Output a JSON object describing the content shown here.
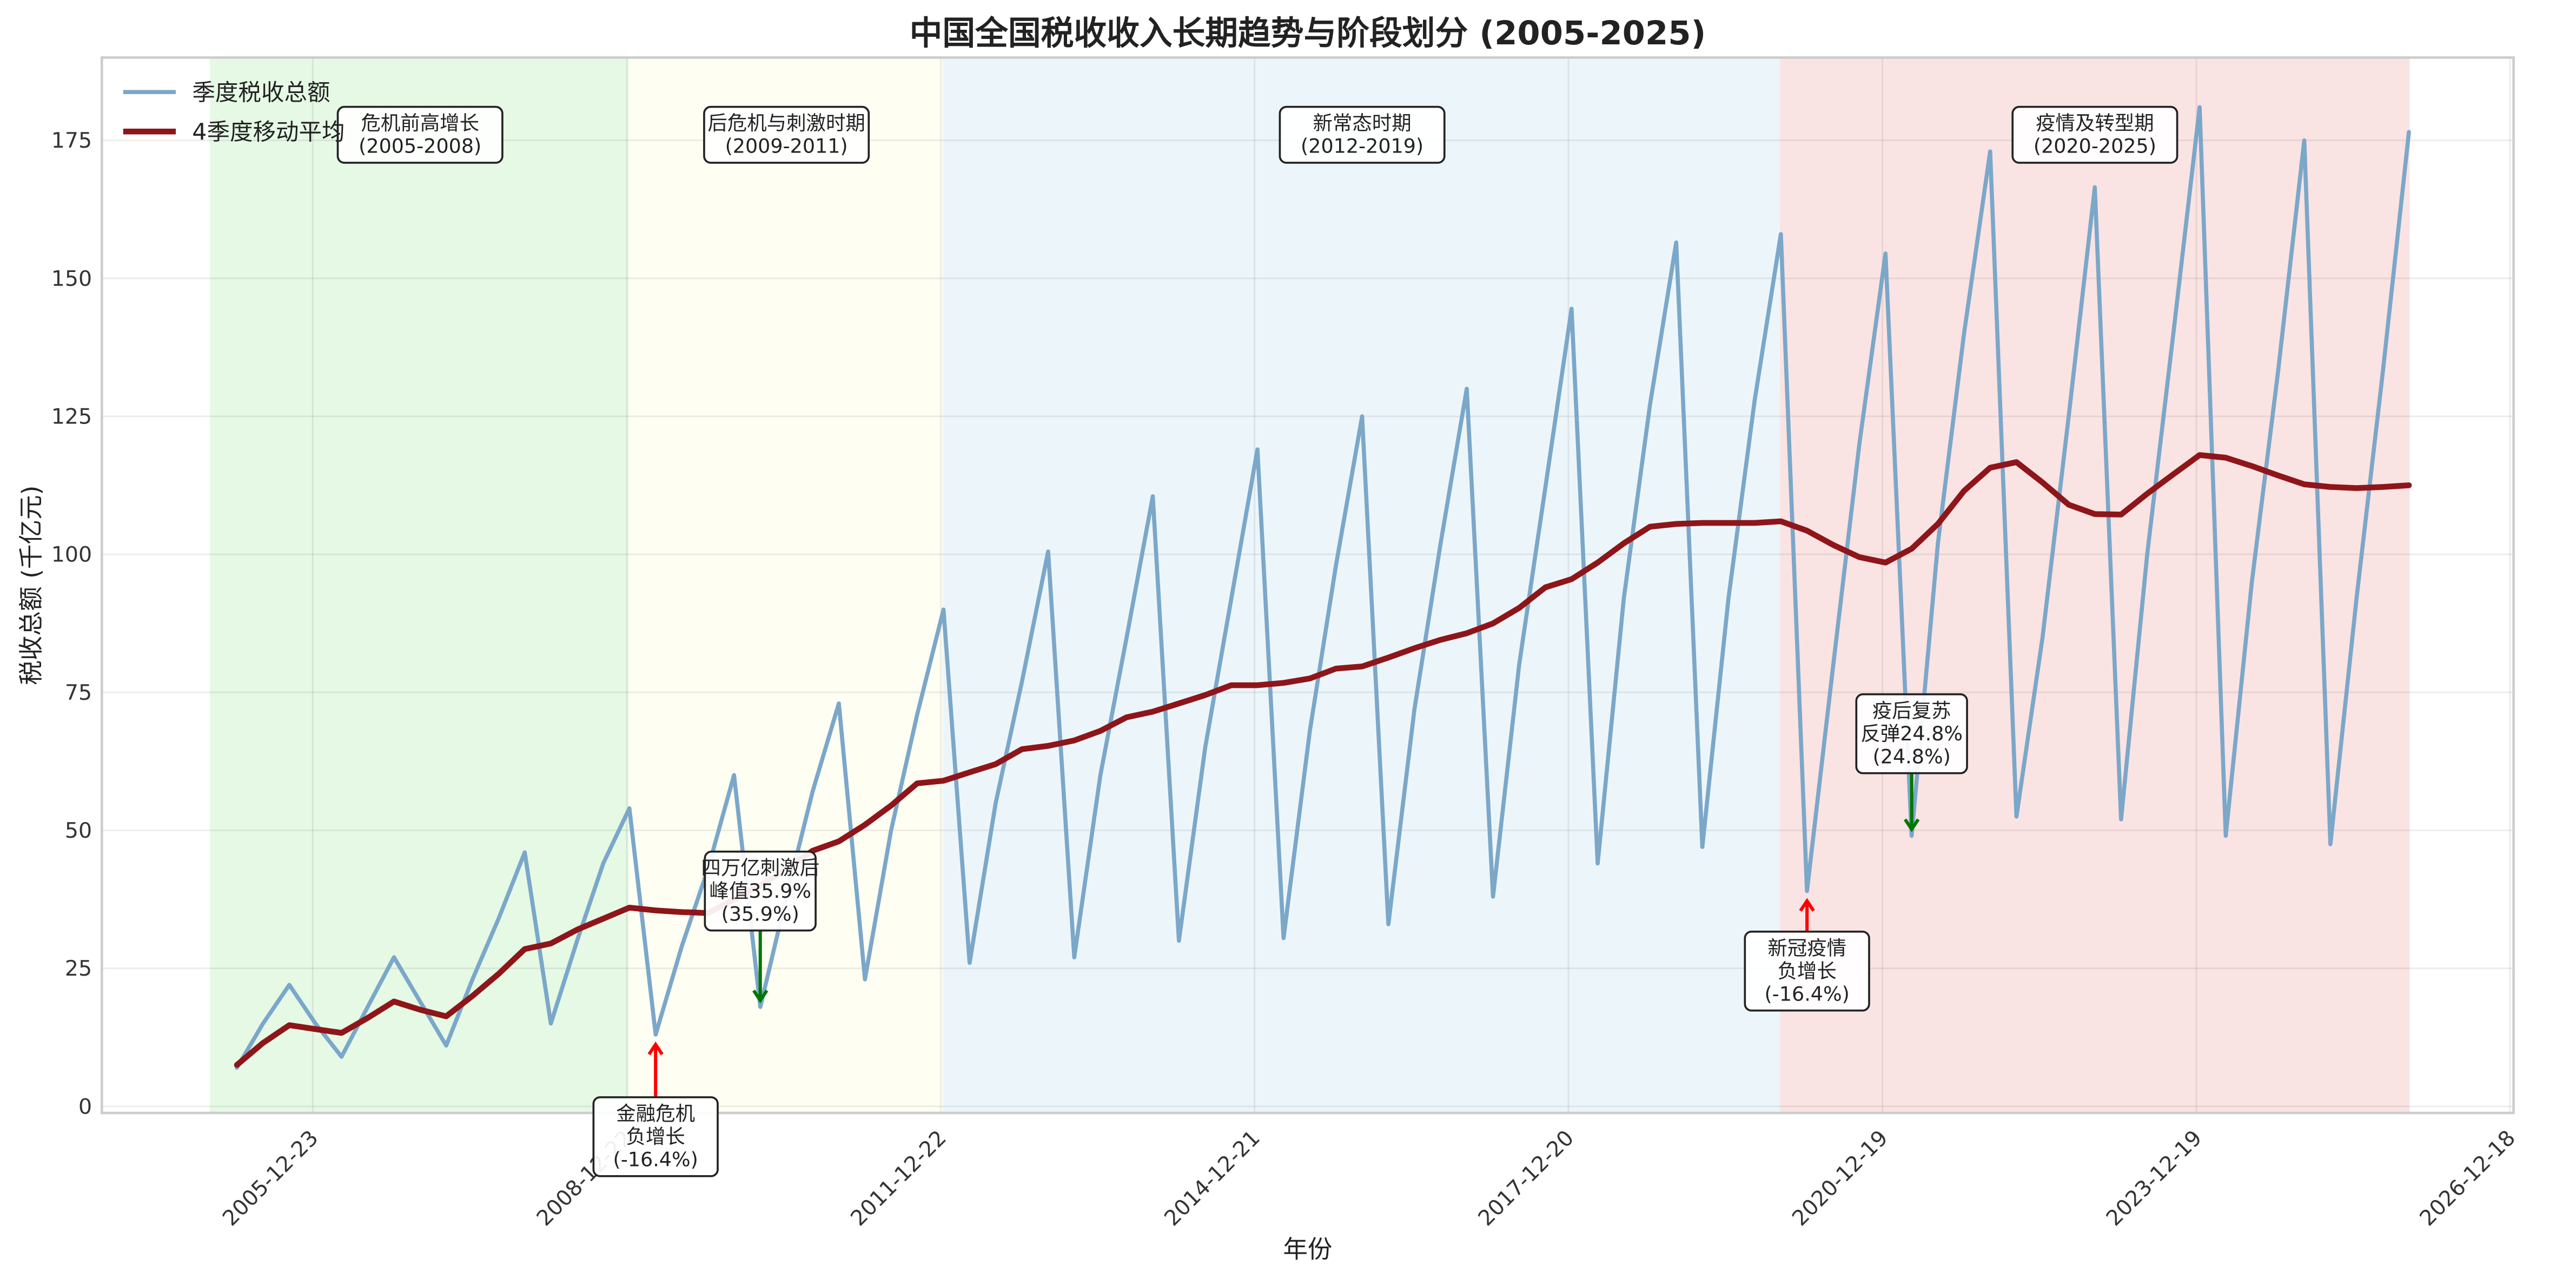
{
  "chart_data": {
    "type": "line",
    "title": "中国全国税收收入长期趋势与阶段划分 (2005-2025)",
    "xlabel": "年份",
    "ylabel": "税收总额 (千亿元)",
    "xlim": [
      2003.96,
      2027.0
    ],
    "ylim": [
      -1.2,
      190
    ],
    "grid": true,
    "legend_position": "top-left",
    "x_start_year": 2005.25,
    "x_step_years": 0.25,
    "yticks": [
      0,
      25,
      50,
      75,
      100,
      125,
      150,
      175
    ],
    "xticks": [
      {
        "value": 2005.975,
        "label": "2005-12-23"
      },
      {
        "value": 2008.975,
        "label": "2008-12-22"
      },
      {
        "value": 2011.975,
        "label": "2011-12-22"
      },
      {
        "value": 2014.972,
        "label": "2014-12-21"
      },
      {
        "value": 2017.97,
        "label": "2017-12-20"
      },
      {
        "value": 2020.97,
        "label": "2020-12-19"
      },
      {
        "value": 2023.97,
        "label": "2023-12-19"
      },
      {
        "value": 2026.965,
        "label": "2026-12-18"
      }
    ],
    "series": [
      {
        "name": "季度税收总额",
        "color": "#7ba7c9",
        "values": [
          7,
          15,
          22,
          15,
          9,
          18,
          27,
          19,
          11,
          23,
          34,
          46,
          15,
          30,
          44,
          54,
          13,
          29,
          43,
          60,
          18,
          38,
          57,
          73,
          23,
          50,
          71,
          90,
          26,
          55,
          77,
          100.5,
          27,
          60,
          85,
          110.5,
          30,
          65,
          92,
          119,
          30.5,
          68,
          98,
          125,
          33,
          72,
          102,
          130,
          38,
          80,
          112,
          144.5,
          44,
          92,
          127,
          156.5,
          47,
          92,
          128,
          158,
          39,
          80,
          120,
          154.5,
          49,
          102,
          140,
          173,
          52.5,
          85,
          125,
          166.5,
          52,
          100,
          140,
          181,
          49,
          95,
          133,
          175,
          47.5,
          92,
          133,
          176.5
        ]
      },
      {
        "name": "4季度移动平均",
        "color": "#8e1519",
        "values": [
          7.5,
          11.5,
          14.7,
          14,
          13.3,
          16,
          19,
          17.5,
          16.3,
          20,
          24,
          28.5,
          29.5,
          32,
          34,
          36,
          35.5,
          35.2,
          35,
          37.5,
          40,
          43,
          46.3,
          48,
          51,
          54.5,
          58.5,
          59,
          60.5,
          62,
          64.7,
          65.3,
          66.3,
          68,
          70.5,
          71.5,
          73,
          74.5,
          76.3,
          76.3,
          76.7,
          77.5,
          79.3,
          79.7,
          81.3,
          83,
          84.5,
          85.7,
          87.5,
          90.3,
          94,
          95.5,
          98.5,
          102,
          105,
          105.5,
          105.7,
          105.7,
          105.7,
          106,
          104.3,
          101.7,
          99.5,
          98.5,
          101,
          105.5,
          111.5,
          115.7,
          116.7,
          113,
          109,
          107.3,
          107.2,
          111,
          114.5,
          118,
          117.5,
          116,
          114.3,
          112.7,
          112.2,
          112,
          112.2,
          112.5
        ]
      }
    ],
    "phases": [
      {
        "name": "危机前高增长",
        "range_label": "(2005-2008)",
        "start": 2005.0,
        "end": 2009.0,
        "color": "#e5f9e5"
      },
      {
        "name": "后危机与刺激时期",
        "range_label": "(2009-2011)",
        "start": 2009.0,
        "end": 2012.0,
        "color": "#fffef3"
      },
      {
        "name": "新常态时期",
        "range_label": "(2012-2019)",
        "start": 2012.0,
        "end": 2020.0,
        "color": "#ecf6fa"
      },
      {
        "name": "疫情及转型期",
        "range_label": "(2020-2025)",
        "start": 2020.0,
        "end": 2026.0,
        "color": "#fae3e3"
      }
    ],
    "annotations": [
      {
        "lines": [
          "金融危机",
          "负增长",
          "(-16.4%)"
        ],
        "point_index": 16,
        "text_y": -5.5,
        "arrow_color": "#ff0000",
        "direction": "up"
      },
      {
        "lines": [
          "四万亿刺激后",
          "峰值35.9%",
          "(35.9%)"
        ],
        "point_index": 20,
        "text_y": 39,
        "arrow_color": "#007700",
        "direction": "down"
      },
      {
        "lines": [
          "新冠疫情",
          "负增长",
          "(-16.4%)"
        ],
        "point_index": 60,
        "text_y": 24.5,
        "arrow_color": "#ff0000",
        "direction": "up"
      },
      {
        "lines": [
          "疫后复苏",
          "反弹24.8%",
          "(24.8%)"
        ],
        "point_index": 64,
        "text_y": 67.5,
        "arrow_color": "#007700",
        "direction": "down"
      }
    ]
  }
}
